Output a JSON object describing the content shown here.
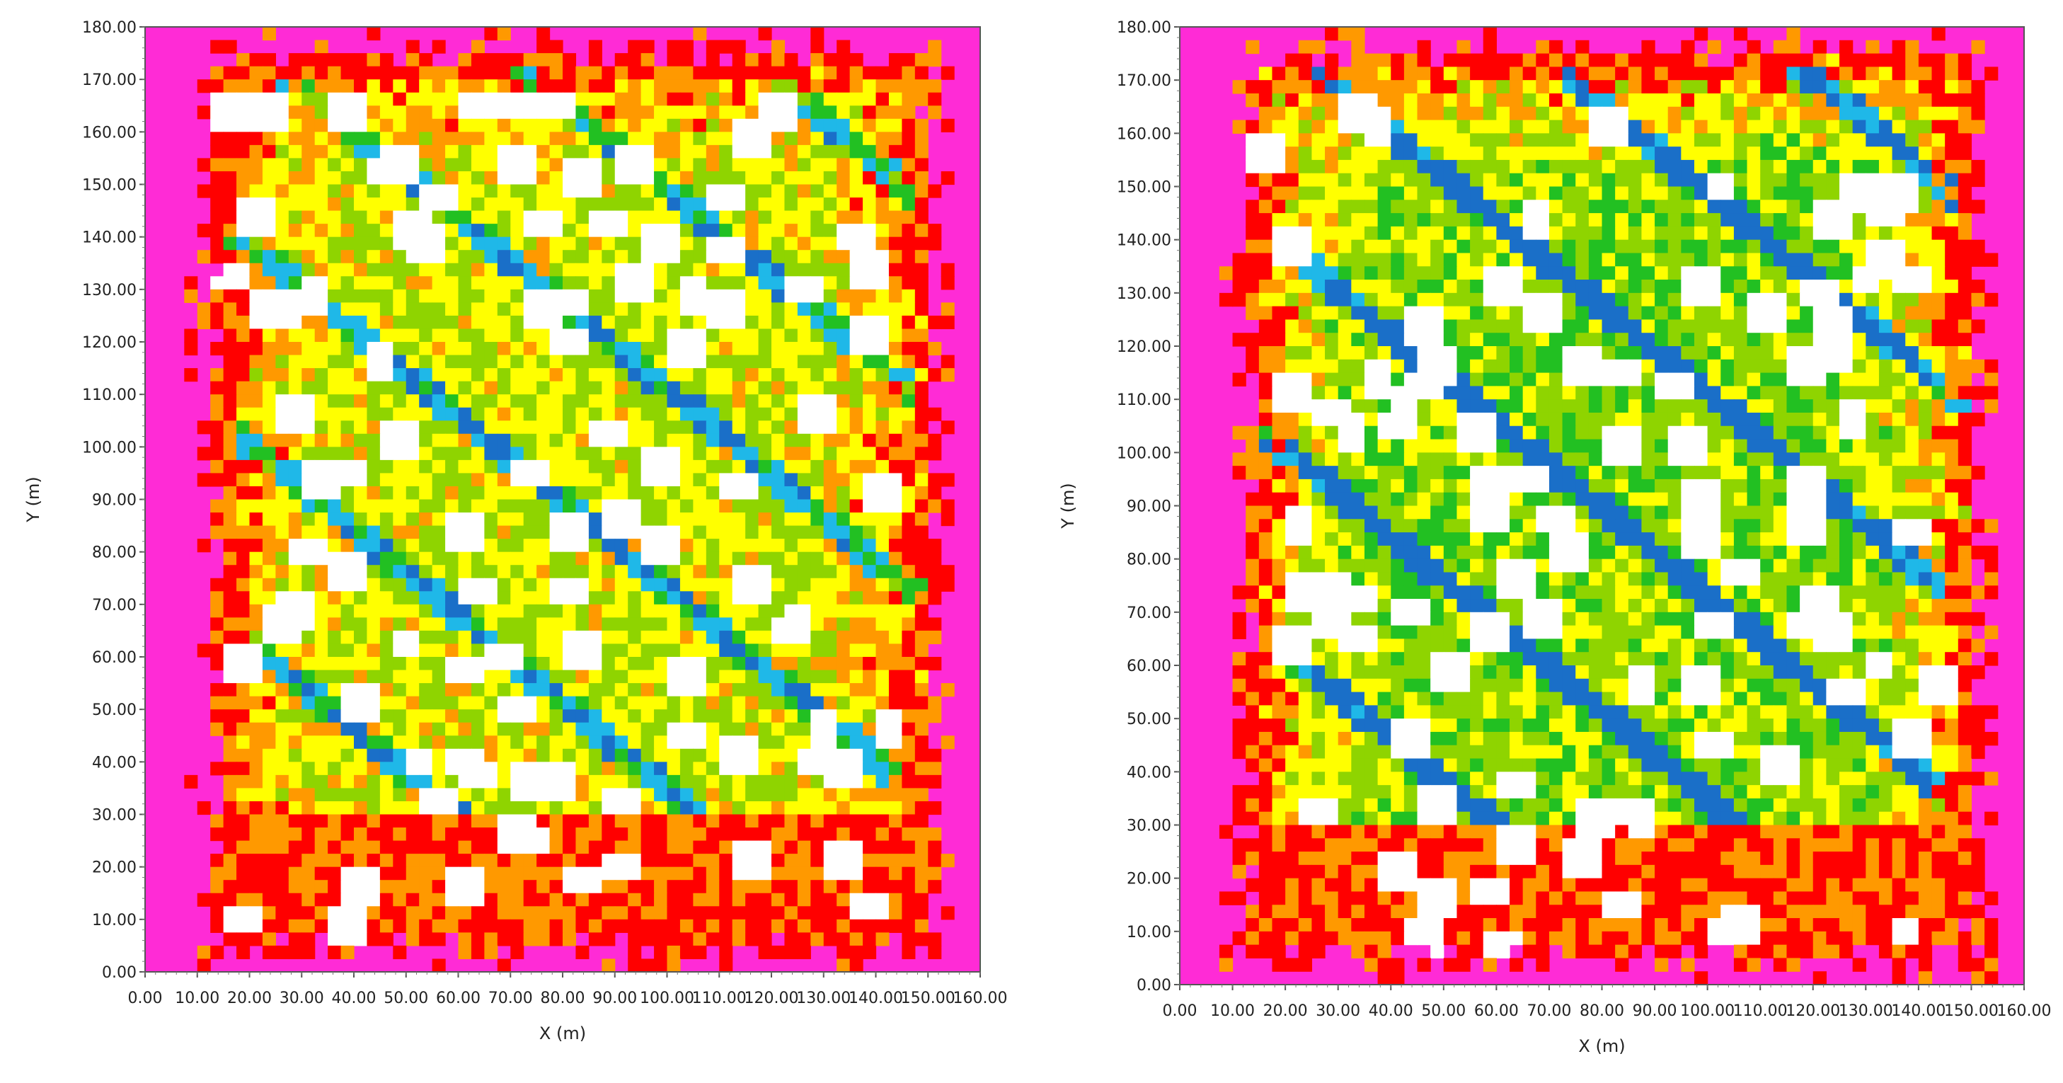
{
  "chart_data": [
    {
      "type": "heatmap",
      "title": "",
      "xlabel": "X (m)",
      "ylabel": "Y (m)",
      "xlim": [
        0,
        160
      ],
      "ylim": [
        0,
        180
      ],
      "xticks": [
        "0.00",
        "10.00",
        "20.00",
        "30.00",
        "40.00",
        "50.00",
        "60.00",
        "70.00",
        "80.00",
        "90.00",
        "100.00",
        "110.00",
        "120.00",
        "130.00",
        "140.00",
        "150.00",
        "160.00"
      ],
      "yticks": [
        "0.00",
        "10.00",
        "20.00",
        "30.00",
        "40.00",
        "50.00",
        "60.00",
        "70.00",
        "80.00",
        "90.00",
        "100.00",
        "110.00",
        "120.00",
        "130.00",
        "140.00",
        "150.00",
        "160.00",
        "170.00",
        "180.00"
      ],
      "grid": false,
      "legend": "none",
      "colors": {
        "background": "#ff2bd6",
        "lowest": "#ff0000",
        "low": "#ff9900",
        "medium": "#ffff00",
        "high": "#8fd400",
        "higher": "#22c022",
        "very_high": "#1fb8e8",
        "highest": "#1a6fc8",
        "buildings": "#ffffff"
      },
      "seed": 7
    },
    {
      "type": "heatmap",
      "title": "",
      "xlabel": "X (m)",
      "ylabel": "Y (m)",
      "xlim": [
        0,
        160
      ],
      "ylim": [
        0,
        180
      ],
      "xticks": [
        "0.00",
        "10.00",
        "20.00",
        "30.00",
        "40.00",
        "50.00",
        "60.00",
        "70.00",
        "80.00",
        "90.00",
        "100.00",
        "110.00",
        "120.00",
        "130.00",
        "140.00",
        "150.00",
        "160.00"
      ],
      "yticks": [
        "0.00",
        "10.00",
        "20.00",
        "30.00",
        "40.00",
        "50.00",
        "60.00",
        "70.00",
        "80.00",
        "90.00",
        "100.00",
        "110.00",
        "120.00",
        "130.00",
        "140.00",
        "150.00",
        "160.00",
        "170.00",
        "180.00"
      ],
      "grid": false,
      "legend": "none",
      "colors": {
        "background": "#ff2bd6",
        "lowest": "#ff0000",
        "low": "#ff9900",
        "medium": "#ffff00",
        "high": "#8fd400",
        "higher": "#22c022",
        "very_high": "#1fb8e8",
        "highest": "#1a6fc8",
        "buildings": "#ffffff"
      },
      "seed": 19
    }
  ]
}
